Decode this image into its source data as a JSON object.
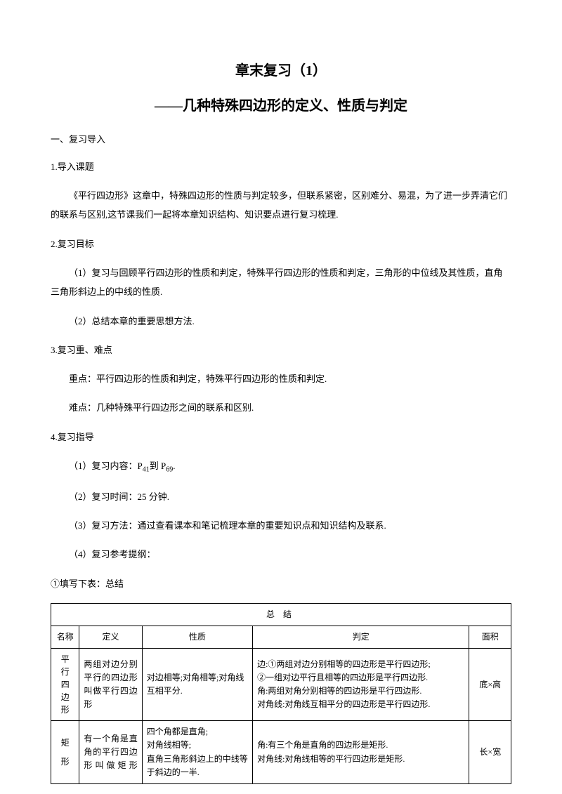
{
  "title": {
    "main": "章末复习（1）",
    "sub": "——几种特殊四边形的定义、性质与判定"
  },
  "sections": {
    "s1_heading": "一、复习导入",
    "s1_1_label": "1.导入课题",
    "s1_1_text": "《平行四边形》这章中，特殊四边形的性质与判定较多，但联系紧密，区别难分、易混，为了进一步弄清它们的联系与区别,这节课我们一起将本章知识结构、知识要点进行复习梳理.",
    "s1_2_label": "2.复习目标",
    "s1_2_item1": "（1）复习与回顾平行四边形的性质和判定，特殊平行四边形的性质和判定，三角形的中位线及其性质，直角三角形斜边上的中线的性质.",
    "s1_2_item2": "（2）总结本章的重要思想方法.",
    "s1_3_label": "3.复习重、难点",
    "s1_3_item1": "重点：平行四边形的性质和判定，特殊平行四边形的性质和判定.",
    "s1_3_item2": "难点：几种特殊平行四边形之间的联系和区别.",
    "s1_4_label": "4.复习指导",
    "s1_4_item1_prefix": "（1）复习内容：P",
    "s1_4_item1_sub1": "41",
    "s1_4_item1_mid": "到 P",
    "s1_4_item1_sub2": "69",
    "s1_4_item1_suffix": ".",
    "s1_4_item2": "（2）复习时间：25 分钟.",
    "s1_4_item3": "（3）复习方法：通过查看课本和笔记梳理本章的重要知识点和知识结构及联系.",
    "s1_4_item4": "（4）复习参考提纲：",
    "fill_label": "①填写下表：总结"
  },
  "table": {
    "header": "总结",
    "cols": {
      "name": "名称",
      "def": "定义",
      "prop": "性质",
      "judge": "判定",
      "area": "面积"
    },
    "rows": [
      {
        "name_lines": [
          "平",
          "行",
          "四",
          "边",
          "形"
        ],
        "def": "两组对边分别平行的四边形叫做平行四边形",
        "prop": "对边相等;对角相等;对角线互相平分.",
        "judge": "边:①两组对边分别相等的四边形是平行四边形;\n②一组对边平行且相等的四边形是平行四边形.\n角:两组对角分别相等的四边形是平行四边形.\n对角线:对角线互相平分的四边形是平行四边形.",
        "area": "底×高"
      },
      {
        "name_lines": [
          "矩",
          "形"
        ],
        "def": "有一个角是直角的平行四边形叫做矩形",
        "prop": "四个角都是直角;\n对角线相等;\n直角三角形斜边上的中线等于斜边的一半.",
        "judge": "角:有三个角是直角的四边形是矩形.\n对角线:对角线相等的平行四边形是矩形.",
        "area": "长×宽"
      }
    ]
  }
}
